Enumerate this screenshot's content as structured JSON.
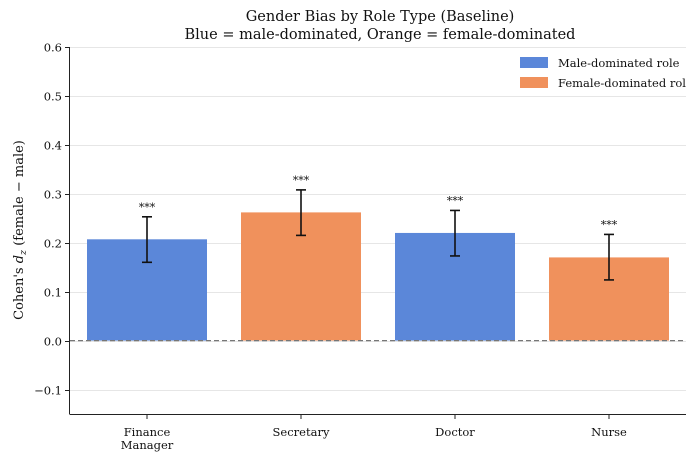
{
  "chart_data": {
    "type": "bar",
    "title": "Gender Bias by Role Type (Baseline)",
    "subtitle": "Blue = male-dominated, Orange = female-dominated",
    "ylabel_prefix": "Cohen's ",
    "ylabel_symbol": "d",
    "ylabel_subscript": "z",
    "ylabel_suffix": " (female − male)",
    "xlabel": "",
    "ylim": [
      -0.15,
      0.6
    ],
    "yticks": [
      -0.1,
      0.0,
      0.1,
      0.2,
      0.3,
      0.4,
      0.5,
      0.6
    ],
    "ytick_labels": [
      "−0.1",
      "0.0",
      "0.1",
      "0.2",
      "0.3",
      "0.4",
      "0.5",
      "0.6"
    ],
    "grid": "horizontal",
    "reference_line": 0.0,
    "legend_position": "top-right",
    "legend": [
      {
        "label": "Male-dominated role",
        "color": "#5b87d9"
      },
      {
        "label": "Female-dominated role",
        "color": "#f0915c"
      }
    ],
    "categories": [
      {
        "label_lines": [
          "Finance",
          "Manager"
        ],
        "value": 0.207,
        "err_low": 0.16,
        "err_high": 0.253,
        "group": "male",
        "significance": "***"
      },
      {
        "label_lines": [
          "Secretary"
        ],
        "value": 0.262,
        "err_low": 0.215,
        "err_high": 0.308,
        "group": "female",
        "significance": "***"
      },
      {
        "label_lines": [
          "Doctor"
        ],
        "value": 0.22,
        "err_low": 0.173,
        "err_high": 0.266,
        "group": "male",
        "significance": "***"
      },
      {
        "label_lines": [
          "Nurse"
        ],
        "value": 0.17,
        "err_low": 0.124,
        "err_high": 0.217,
        "group": "female",
        "significance": "***"
      }
    ],
    "colors": {
      "male": "#5b87d9",
      "female": "#f0915c",
      "axis": "#222222",
      "grid": "#e6e6e6",
      "zero_line": "#777777"
    }
  }
}
